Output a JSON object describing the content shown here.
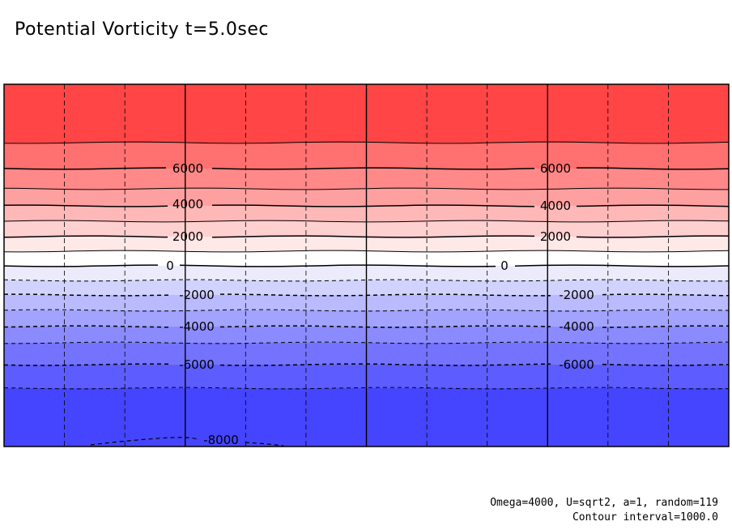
{
  "title": "Potential Vorticity t=5.0sec",
  "footer": {
    "params": "Omega=4000, U=sqrt2, a=1, random=119",
    "interval": "Contour interval=1000.0"
  },
  "chart_data": {
    "type": "filled-contour",
    "title": "Potential Vorticity t=5.0sec",
    "contour_interval": 1000,
    "value_range": [
      -8000,
      8000
    ],
    "grid": true,
    "x_divisions": 12,
    "y_divisions": 0,
    "fill_bands": [
      {
        "from": -9000,
        "to": -7000,
        "color": "#4545ff"
      },
      {
        "from": -7000,
        "to": -6000,
        "color": "#5c5cff"
      },
      {
        "from": -6000,
        "to": -5000,
        "color": "#7373ff"
      },
      {
        "from": -5000,
        "to": -4000,
        "color": "#8b8bff"
      },
      {
        "from": -4000,
        "to": -3000,
        "color": "#a2a2ff"
      },
      {
        "from": -3000,
        "to": -2000,
        "color": "#babaff"
      },
      {
        "from": -2000,
        "to": -1000,
        "color": "#d2d2ff"
      },
      {
        "from": -1000,
        "to": 0,
        "color": "#ebebfb"
      },
      {
        "from": 0,
        "to": 1000,
        "color": "#ffffff"
      },
      {
        "from": 1000,
        "to": 2000,
        "color": "#ffe8e8"
      },
      {
        "from": 2000,
        "to": 3000,
        "color": "#ffd0d0"
      },
      {
        "from": 3000,
        "to": 4000,
        "color": "#ffb8b8"
      },
      {
        "from": 4000,
        "to": 5000,
        "color": "#ffa0a0"
      },
      {
        "from": 5000,
        "to": 6000,
        "color": "#ff8888"
      },
      {
        "from": 6000,
        "to": 7000,
        "color": "#ff7070"
      },
      {
        "from": 7000,
        "to": 9000,
        "color": "#ff4545"
      }
    ],
    "contour_levels": [
      -8000,
      -7000,
      -6000,
      -5000,
      -4000,
      -3000,
      -2000,
      -1000,
      0,
      1000,
      2000,
      3000,
      4000,
      5000,
      6000,
      7000
    ],
    "contour_labels": [
      {
        "text": "6000",
        "level": 6000
      },
      {
        "text": "4000",
        "level": 4000
      },
      {
        "text": "2000",
        "level": 2000
      },
      {
        "text": "0",
        "level": 0
      },
      {
        "text": "-2000",
        "level": -2000
      },
      {
        "text": "-4000",
        "level": -4000
      },
      {
        "text": "-6000",
        "level": -6000
      },
      {
        "text": "-8000",
        "level": -8000
      }
    ]
  }
}
